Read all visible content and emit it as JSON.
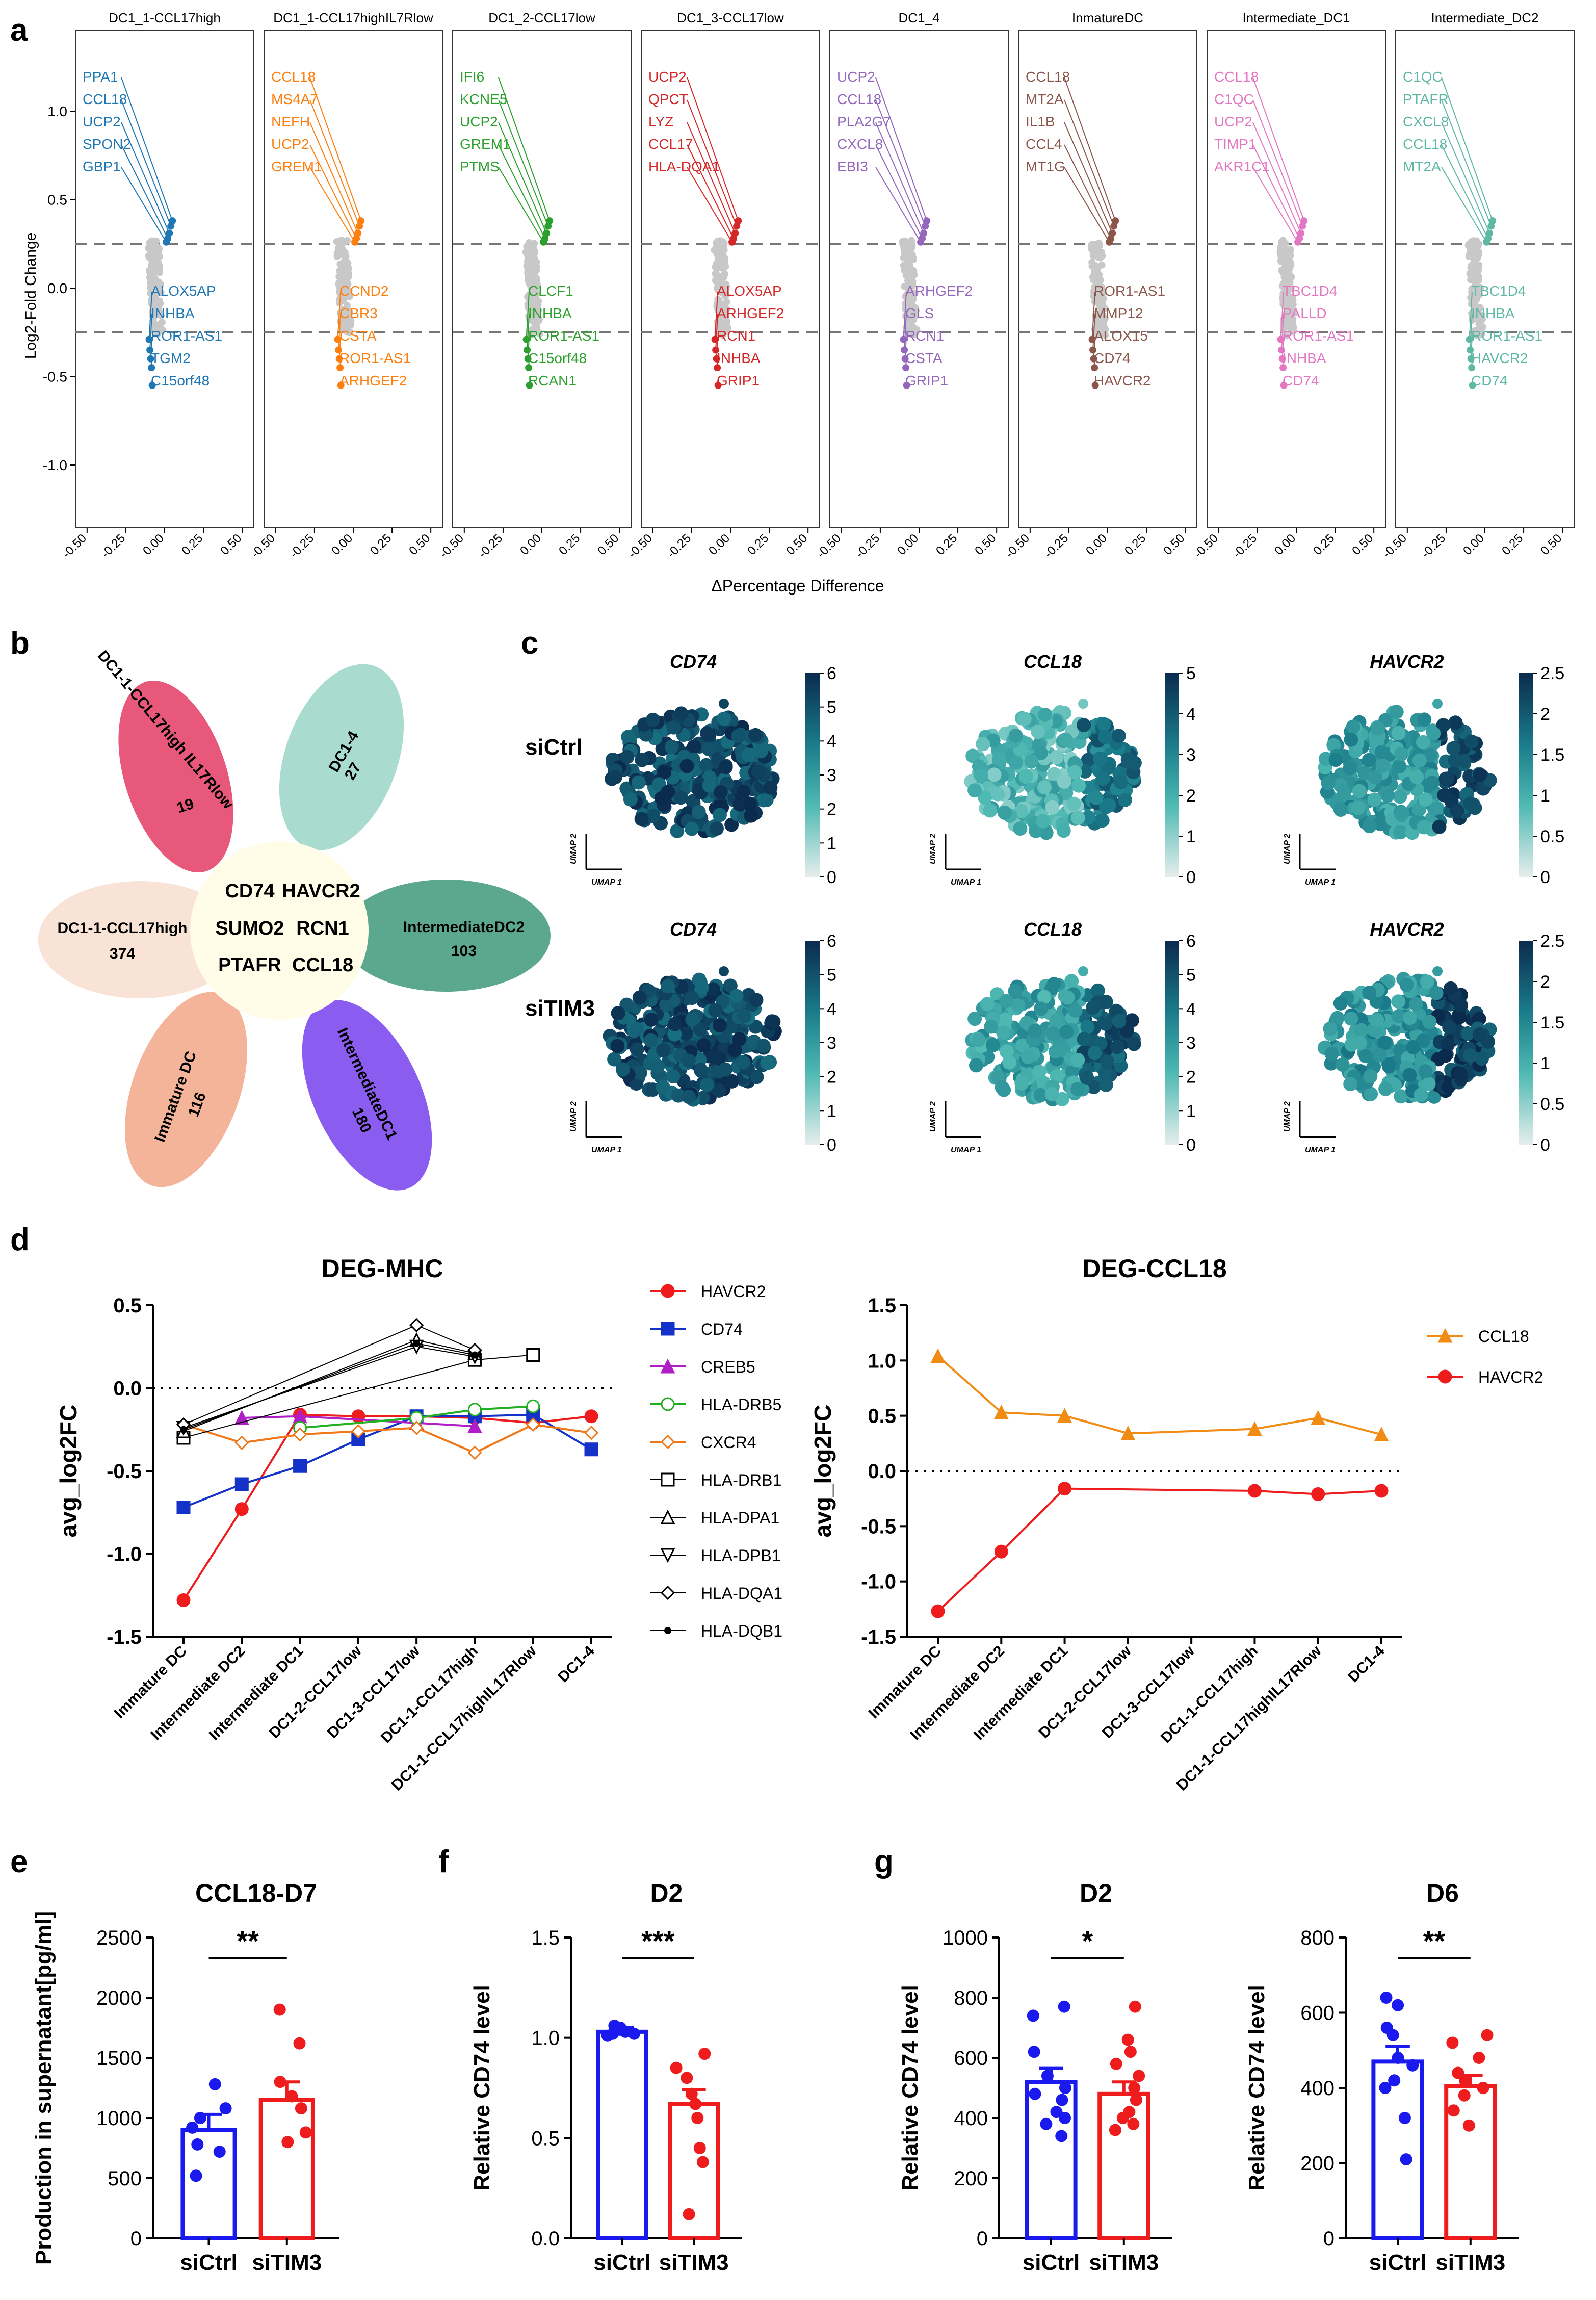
{
  "panel_letters": [
    "a",
    "b",
    "c",
    "d",
    "e",
    "f",
    "g"
  ],
  "panel_a": {
    "ylabel": "Log2-Fold Change",
    "xlabel": "ΔPercentage Difference",
    "yticks": [
      1.0,
      0.5,
      0.0,
      -0.5,
      -1.0
    ],
    "xticks": [
      "-0.50",
      "-0.25",
      "0.00",
      "0.25",
      "0.50"
    ],
    "threshold": 0.25,
    "subpanels": [
      {
        "title": "DC1_1-CCL17high",
        "color": "#1f77b4",
        "up": [
          "PPA1",
          "CCL18",
          "UCP2",
          "SPON2",
          "GBP1"
        ],
        "down": [
          "ALOX5AP",
          "INHBA",
          "ROR1-AS1",
          "TGM2",
          "C15orf48"
        ]
      },
      {
        "title": "DC1_1-CCL17highIL7Rlow",
        "color": "#ff7f0e",
        "up": [
          "CCL18",
          "MS4A7",
          "NEFH",
          "UCP2",
          "GREM1"
        ],
        "down": [
          "CCND2",
          "CBR3",
          "CSTA",
          "ROR1-AS1",
          "ARHGEF2"
        ]
      },
      {
        "title": "DC1_2-CCL17low",
        "color": "#2ca02c",
        "up": [
          "IFI6",
          "KCNE5",
          "UCP2",
          "GREM1",
          "PTMS"
        ],
        "down": [
          "CLCF1",
          "INHBA",
          "ROR1-AS1",
          "C15orf48",
          "RCAN1"
        ]
      },
      {
        "title": "DC1_3-CCL17low",
        "color": "#d62728",
        "up": [
          "UCP2",
          "QPCT",
          "LYZ",
          "CCL17",
          "HLA-DQA1"
        ],
        "down": [
          "ALOX5AP",
          "ARHGEF2",
          "RCN1",
          "INHBA",
          "GRIP1"
        ]
      },
      {
        "title": "DC1_4",
        "color": "#9467bd",
        "up": [
          "UCP2",
          "CCL18",
          "PLA2G7",
          "CXCL8",
          "EBI3"
        ],
        "down": [
          "ARHGEF2",
          "GLS",
          "RCN1",
          "CSTA",
          "GRIP1"
        ]
      },
      {
        "title": "InmatureDC",
        "color": "#8c564b",
        "up": [
          "CCL18",
          "MT2A",
          "IL1B",
          "CCL4",
          "MT1G"
        ],
        "down": [
          "ROR1-AS1",
          "MMP12",
          "ALOX15",
          "CD74",
          "HAVCR2"
        ]
      },
      {
        "title": "Intermediate_DC1",
        "color": "#e377c2",
        "up": [
          "CCL18",
          "C1QC",
          "UCP2",
          "TIMP1",
          "AKR1C1"
        ],
        "down": [
          "TBC1D4",
          "PALLD",
          "ROR1-AS1",
          "INHBA",
          "CD74"
        ]
      },
      {
        "title": "Intermediate_DC2",
        "color": "#5fb8a4",
        "up": [
          "C1QC",
          "PTAFR",
          "CXCL8",
          "CCL18",
          "MT2A"
        ],
        "down": [
          "TBC1D4",
          "INHBA",
          "ROR1-AS1",
          "HAVCR2",
          "CD74"
        ]
      }
    ]
  },
  "panel_b": {
    "petals": [
      {
        "label": "DC1-1-CCL17high IL17Rlow",
        "count": "19",
        "color": "#e8587a"
      },
      {
        "label": "DC1-4",
        "count": "27",
        "color": "#a9dccf"
      },
      {
        "label": "IntermediateDC2",
        "count": "103",
        "color": "#5ba88e"
      },
      {
        "label": "IntermediateDC1",
        "count": "180",
        "color": "#8b5cf0"
      },
      {
        "label": "Immature DC",
        "count": "116",
        "color": "#f3b49a"
      },
      {
        "label": "DC1-1-CCL17high",
        "count": "374",
        "color": "#f9e3d7"
      }
    ],
    "core_genes": [
      "CD74",
      "HAVCR2",
      "SUMO2",
      "RCN1",
      "PTAFR",
      "CCL18"
    ]
  },
  "panel_c": {
    "row_labels": [
      "siCtrl",
      "siTIM3"
    ],
    "genes": [
      "CD74",
      "CCL18",
      "HAVCR2"
    ],
    "axis_labels": {
      "x": "UMAP 1",
      "y": "UMAP 2"
    },
    "colorbars": [
      {
        "max": 6,
        "ticks": [
          "6",
          "5",
          "4",
          "3",
          "2",
          "1",
          "0"
        ]
      },
      {
        "max": 5,
        "ticks": [
          "5",
          "4",
          "3",
          "2",
          "1",
          "0"
        ]
      },
      {
        "max": 2.5,
        "ticks": [
          "2.5",
          "2",
          "1.5",
          "1",
          "0.5",
          "0"
        ]
      },
      {
        "max": 6,
        "ticks": [
          "6",
          "5",
          "4",
          "3",
          "2",
          "1",
          "0"
        ]
      },
      {
        "max": 6,
        "ticks": [
          "6",
          "5",
          "4",
          "3",
          "2",
          "1",
          "0"
        ]
      },
      {
        "max": 2.5,
        "ticks": [
          "2.5",
          "2",
          "1.5",
          "1",
          "0.5",
          "0"
        ]
      }
    ]
  },
  "chart_data": [
    {
      "type": "line",
      "title": "DEG-MHC",
      "ylabel": "avg_log2FC",
      "xlabel": "",
      "ylim": [
        -1.5,
        0.5
      ],
      "yticks": [
        "0.5",
        "0.0",
        "-0.5",
        "-1.0",
        "-1.5"
      ],
      "categories": [
        "Immature DC",
        "Intermediate DC2",
        "Intermediate DC1",
        "DC1-2-CCL17low",
        "DC1-3-CCL17low",
        "DC1-1-CCL17high",
        "DC1-1-CCL17highIL17Rlow",
        "DC1-4"
      ],
      "series": [
        {
          "name": "HAVCR2",
          "color": "#ee1c1c",
          "marker": "circle",
          "values": [
            -1.28,
            -0.73,
            -0.16,
            -0.17,
            -0.17,
            -0.18,
            -0.21,
            -0.17
          ]
        },
        {
          "name": "CD74",
          "color": "#1432c8",
          "marker": "square",
          "values": [
            -0.72,
            -0.58,
            -0.47,
            -0.31,
            -0.17,
            -0.17,
            -0.16,
            -0.37
          ]
        },
        {
          "name": "CREB5",
          "color": "#b01ec8",
          "marker": "triangle",
          "values": [
            null,
            -0.18,
            -0.17,
            null,
            -0.21,
            -0.23,
            null,
            null
          ]
        },
        {
          "name": "HLA-DRB5",
          "color": "#22b022",
          "marker": "circle-open",
          "values": [
            null,
            null,
            -0.24,
            null,
            -0.18,
            -0.13,
            -0.11,
            null
          ]
        },
        {
          "name": "CXCR4",
          "color": "#f07818",
          "marker": "diamond-open",
          "values": [
            -0.22,
            -0.33,
            -0.28,
            -0.26,
            -0.24,
            -0.39,
            -0.22,
            -0.27
          ]
        },
        {
          "name": "HLA-DRB1",
          "color": "#000000",
          "marker": "square-open",
          "values": [
            -0.3,
            null,
            null,
            null,
            null,
            0.17,
            0.2,
            null
          ]
        },
        {
          "name": "HLA-DPA1",
          "color": "#000000",
          "marker": "triangle-open",
          "values": [
            -0.26,
            null,
            null,
            null,
            0.29,
            0.21,
            null,
            null
          ]
        },
        {
          "name": "HLA-DPB1",
          "color": "#000000",
          "marker": "triangle-down-open",
          "values": [
            -0.24,
            null,
            null,
            null,
            0.25,
            0.19,
            null,
            null
          ]
        },
        {
          "name": "HLA-DQA1",
          "color": "#000000",
          "marker": "diamond-open",
          "values": [
            -0.22,
            null,
            null,
            null,
            0.38,
            0.23,
            null,
            null
          ]
        },
        {
          "name": "HLA-DQB1",
          "color": "#000000",
          "marker": "star",
          "values": [
            -0.25,
            null,
            null,
            null,
            0.27,
            0.2,
            null,
            null
          ]
        }
      ]
    },
    {
      "type": "line",
      "title": "DEG-CCL18",
      "ylabel": "avg_log2FC",
      "xlabel": "",
      "ylim": [
        -1.5,
        1.5
      ],
      "yticks": [
        "1.5",
        "1.0",
        "0.5",
        "0.0",
        "-0.5",
        "-1.0",
        "-1.5"
      ],
      "categories": [
        "Immature DC",
        "Intermediate DC2",
        "Intermediate DC1",
        "DC1-2-CCL17low",
        "DC1-3-CCL17low",
        "DC1-1-CCL17high",
        "DC1-1-CCL17highIL17Rlow",
        "DC1-4"
      ],
      "series": [
        {
          "name": "CCL18",
          "color": "#f08c14",
          "marker": "triangle",
          "values": [
            1.04,
            0.53,
            0.5,
            0.34,
            null,
            0.38,
            0.48,
            0.33
          ]
        },
        {
          "name": "HAVCR2",
          "color": "#ee1c1c",
          "marker": "circle",
          "values": [
            -1.27,
            -0.73,
            -0.16,
            null,
            null,
            -0.18,
            -0.21,
            -0.18
          ]
        }
      ]
    },
    {
      "type": "bar",
      "title": "CCL18-D7",
      "ylabel": "Production in supernatant[pg/ml]",
      "categories": [
        "siCtrl",
        "siTIM3"
      ],
      "values": [
        900,
        1150
      ],
      "errors": [
        130,
        150
      ],
      "ylim": [
        0,
        2500
      ],
      "yticks": [
        "2500",
        "2000",
        "1500",
        "1000",
        "500",
        "0"
      ],
      "significance": "**",
      "points": [
        [
          1280,
          1080,
          1000,
          920,
          780,
          720,
          520
        ],
        [
          1900,
          1620,
          1300,
          1180,
          1080,
          880,
          800
        ]
      ]
    },
    {
      "type": "bar",
      "title": "D2",
      "ylabel": "Relative CD74 level",
      "categories": [
        "siCtrl",
        "siTIM3"
      ],
      "values": [
        1.03,
        0.67
      ],
      "errors": [
        0.02,
        0.07
      ],
      "ylim": [
        0,
        1.5
      ],
      "yticks": [
        "1.5",
        "1.0",
        "0.5",
        "0.0"
      ],
      "significance": "***",
      "points": [
        [
          1.06,
          1.05,
          1.04,
          1.03,
          1.02,
          1.02,
          1.01
        ],
        [
          0.92,
          0.85,
          0.8,
          0.72,
          0.67,
          0.6,
          0.45,
          0.38,
          0.12
        ]
      ]
    },
    {
      "type": "bar",
      "title": "D2",
      "ylabel": "Relative CD74 level",
      "categories": [
        "siCtrl",
        "siTIM3"
      ],
      "values": [
        520,
        480
      ],
      "errors": [
        45,
        40
      ],
      "ylim": [
        0,
        1000
      ],
      "yticks": [
        "1000",
        "800",
        "600",
        "400",
        "200",
        "0"
      ],
      "significance": "*",
      "points": [
        [
          770,
          740,
          620,
          540,
          500,
          480,
          460,
          420,
          400,
          380,
          340
        ],
        [
          770,
          660,
          620,
          580,
          540,
          500,
          460,
          420,
          400,
          380,
          360
        ]
      ]
    },
    {
      "type": "bar",
      "title": "D6",
      "ylabel": "Relative CD74 level",
      "categories": [
        "siCtrl",
        "siTIM3"
      ],
      "values": [
        470,
        405
      ],
      "errors": [
        40,
        28
      ],
      "ylim": [
        0,
        800
      ],
      "yticks": [
        "800",
        "600",
        "400",
        "200",
        "0"
      ],
      "significance": "**",
      "points": [
        [
          640,
          620,
          560,
          540,
          480,
          460,
          420,
          400,
          320,
          210
        ],
        [
          540,
          520,
          480,
          440,
          420,
          400,
          380,
          340,
          300
        ]
      ]
    }
  ]
}
